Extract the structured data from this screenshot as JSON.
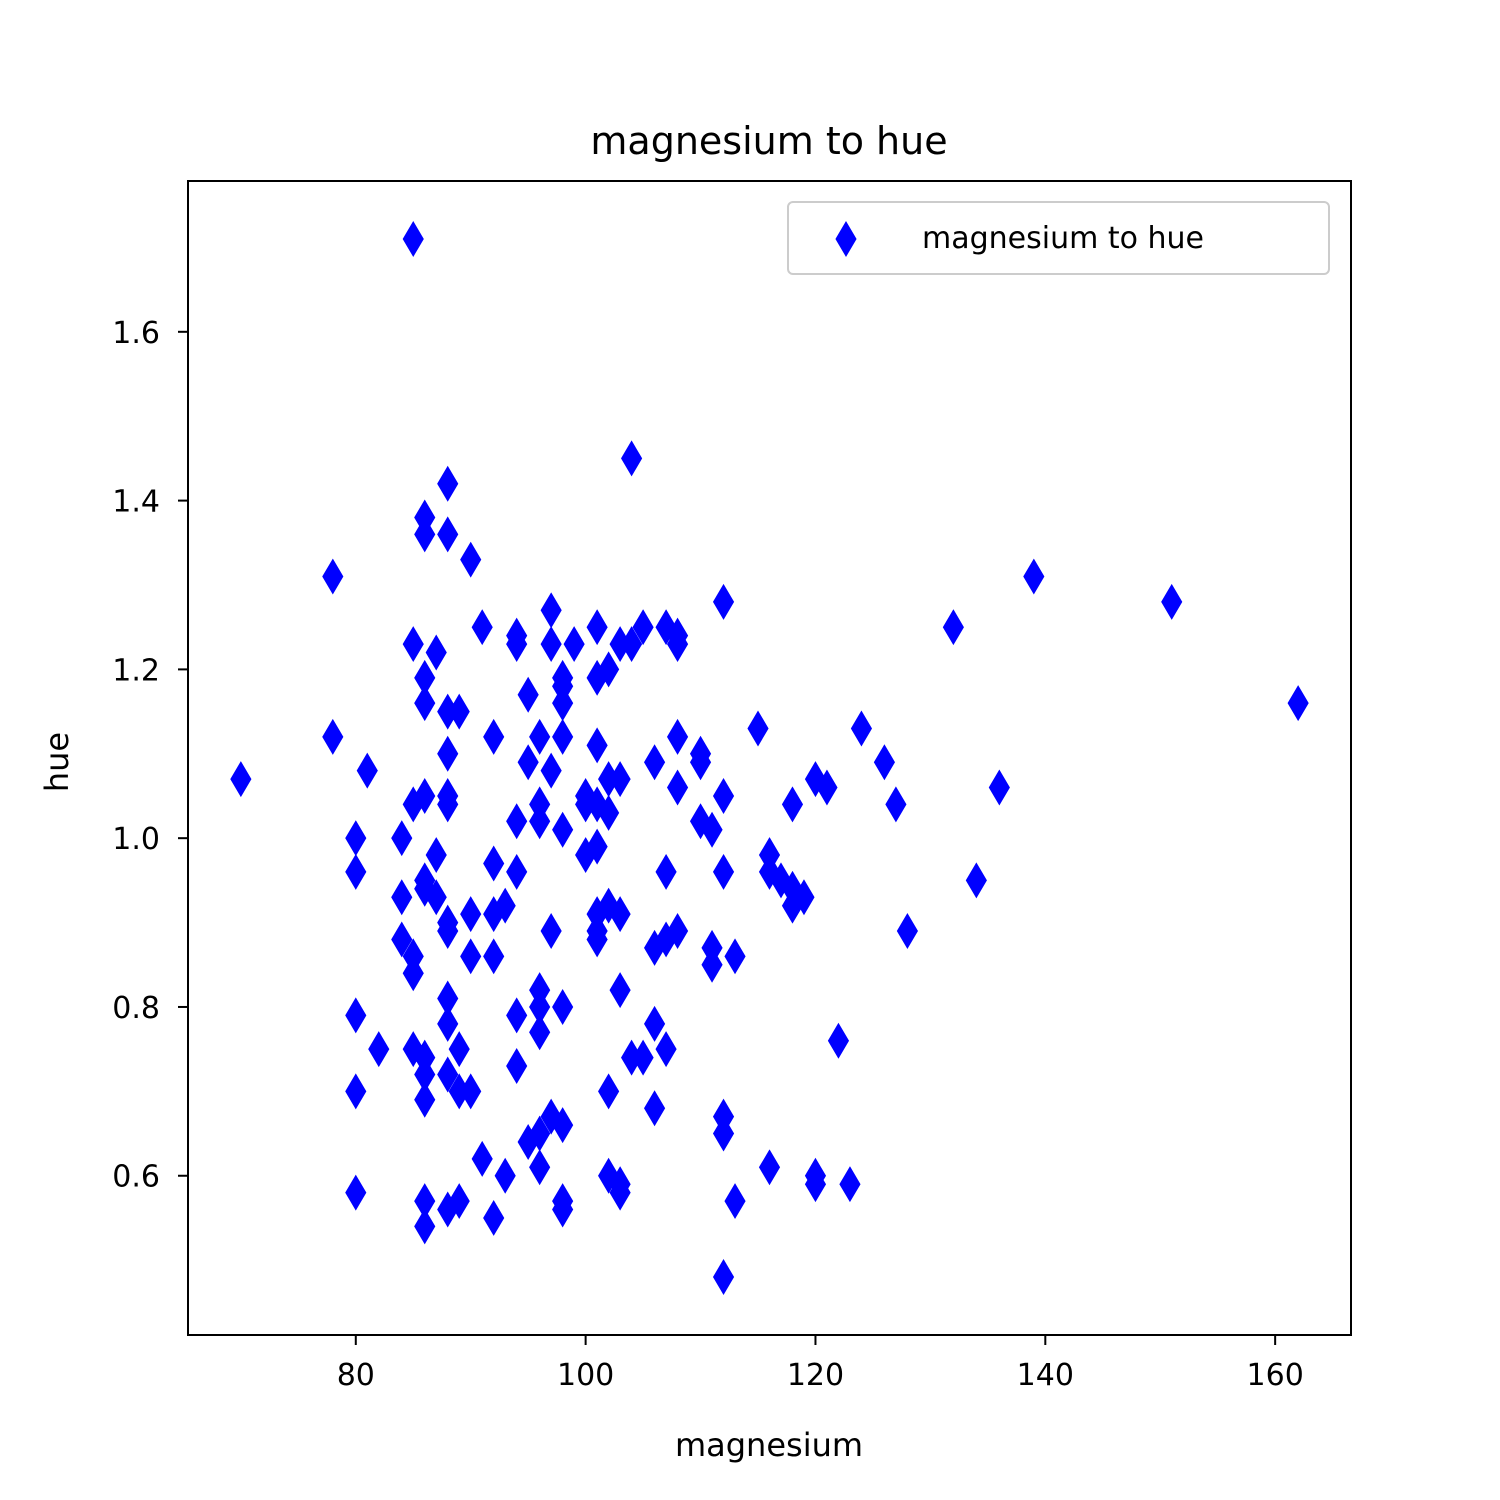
{
  "chart_data": {
    "type": "scatter",
    "title": "magnesium to hue",
    "xlabel": "magnesium",
    "ylabel": "hue",
    "xlim": [
      65.4,
      166.6
    ],
    "ylim": [
      0.4113,
      1.7787
    ],
    "xticks": [
      80,
      100,
      120,
      140,
      160
    ],
    "xtick_labels": [
      "80",
      "100",
      "120",
      "140",
      "160"
    ],
    "yticks": [
      0.6,
      0.8,
      1.0,
      1.2,
      1.4,
      1.6
    ],
    "ytick_labels": [
      "0.6",
      "0.8",
      "1.0",
      "1.2",
      "1.4",
      "1.6"
    ],
    "grid": false,
    "legend": {
      "position": "top-right",
      "entries": [
        "magnesium to hue"
      ]
    },
    "marker": "thin-diamond",
    "color": "#0000ff",
    "series": [
      {
        "name": "magnesium to hue",
        "points": [
          [
            85,
            1.71
          ],
          [
            70,
            1.07
          ],
          [
            78,
            1.31
          ],
          [
            78,
            1.12
          ],
          [
            81,
            1.08
          ],
          [
            82,
            0.75
          ],
          [
            80,
            1.0
          ],
          [
            80,
            0.96
          ],
          [
            80,
            0.79
          ],
          [
            80,
            0.7
          ],
          [
            80,
            0.58
          ],
          [
            84,
            1.0
          ],
          [
            84,
            0.93
          ],
          [
            84,
            0.88
          ],
          [
            85,
            1.23
          ],
          [
            85,
            1.04
          ],
          [
            85,
            0.86
          ],
          [
            85,
            0.84
          ],
          [
            85,
            0.75
          ],
          [
            86,
            1.38
          ],
          [
            86,
            1.36
          ],
          [
            86,
            1.19
          ],
          [
            86,
            1.16
          ],
          [
            86,
            1.05
          ],
          [
            86,
            0.95
          ],
          [
            86,
            0.94
          ],
          [
            86,
            0.74
          ],
          [
            86,
            0.72
          ],
          [
            86,
            0.69
          ],
          [
            86,
            0.57
          ],
          [
            86,
            0.54
          ],
          [
            87,
            1.22
          ],
          [
            87,
            0.98
          ],
          [
            87,
            0.93
          ],
          [
            88,
            1.42
          ],
          [
            88,
            1.36
          ],
          [
            88,
            1.15
          ],
          [
            88,
            1.1
          ],
          [
            88,
            1.05
          ],
          [
            88,
            1.04
          ],
          [
            88,
            0.9
          ],
          [
            88,
            0.89
          ],
          [
            88,
            0.81
          ],
          [
            88,
            0.78
          ],
          [
            88,
            0.72
          ],
          [
            88,
            0.56
          ],
          [
            89,
            1.15
          ],
          [
            89,
            0.75
          ],
          [
            89,
            0.7
          ],
          [
            89,
            0.57
          ],
          [
            90,
            1.33
          ],
          [
            90,
            0.91
          ],
          [
            90,
            0.86
          ],
          [
            90,
            0.7
          ],
          [
            91,
            1.25
          ],
          [
            91,
            0.62
          ],
          [
            92,
            1.12
          ],
          [
            92,
            0.97
          ],
          [
            92,
            0.91
          ],
          [
            92,
            0.86
          ],
          [
            92,
            0.55
          ],
          [
            93,
            0.92
          ],
          [
            93,
            0.6
          ],
          [
            94,
            1.24
          ],
          [
            94,
            1.23
          ],
          [
            94,
            1.02
          ],
          [
            94,
            0.96
          ],
          [
            94,
            0.79
          ],
          [
            94,
            0.73
          ],
          [
            95,
            1.17
          ],
          [
            95,
            1.09
          ],
          [
            95,
            0.64
          ],
          [
            96,
            1.12
          ],
          [
            96,
            1.04
          ],
          [
            96,
            1.02
          ],
          [
            96,
            0.82
          ],
          [
            96,
            0.8
          ],
          [
            96,
            0.77
          ],
          [
            96,
            0.65
          ],
          [
            96,
            0.61
          ],
          [
            97,
            1.27
          ],
          [
            97,
            1.23
          ],
          [
            97,
            1.08
          ],
          [
            97,
            0.89
          ],
          [
            97,
            0.67
          ],
          [
            98,
            1.19
          ],
          [
            98,
            1.18
          ],
          [
            98,
            1.16
          ],
          [
            98,
            1.12
          ],
          [
            98,
            1.01
          ],
          [
            98,
            0.8
          ],
          [
            98,
            0.66
          ],
          [
            98,
            0.57
          ],
          [
            98,
            0.56
          ],
          [
            99,
            1.23
          ],
          [
            100,
            1.05
          ],
          [
            100,
            1.04
          ],
          [
            100,
            0.98
          ],
          [
            101,
            1.25
          ],
          [
            101,
            1.19
          ],
          [
            101,
            1.11
          ],
          [
            101,
            1.04
          ],
          [
            101,
            0.99
          ],
          [
            101,
            0.91
          ],
          [
            101,
            0.89
          ],
          [
            101,
            0.88
          ],
          [
            102,
            1.2
          ],
          [
            102,
            1.07
          ],
          [
            102,
            1.03
          ],
          [
            102,
            0.92
          ],
          [
            102,
            0.7
          ],
          [
            102,
            0.6
          ],
          [
            103,
            1.23
          ],
          [
            103,
            1.07
          ],
          [
            103,
            0.91
          ],
          [
            103,
            0.82
          ],
          [
            103,
            0.59
          ],
          [
            103,
            0.58
          ],
          [
            104,
            1.45
          ],
          [
            104,
            1.23
          ],
          [
            104,
            0.74
          ],
          [
            105,
            1.25
          ],
          [
            105,
            0.74
          ],
          [
            106,
            1.09
          ],
          [
            106,
            0.87
          ],
          [
            106,
            0.78
          ],
          [
            106,
            0.68
          ],
          [
            107,
            1.25
          ],
          [
            107,
            0.96
          ],
          [
            107,
            0.88
          ],
          [
            107,
            0.75
          ],
          [
            108,
            1.24
          ],
          [
            108,
            1.23
          ],
          [
            108,
            1.12
          ],
          [
            108,
            1.06
          ],
          [
            108,
            0.89
          ],
          [
            110,
            1.1
          ],
          [
            110,
            1.09
          ],
          [
            110,
            1.02
          ],
          [
            111,
            1.01
          ],
          [
            111,
            0.87
          ],
          [
            111,
            0.85
          ],
          [
            112,
            1.28
          ],
          [
            112,
            1.05
          ],
          [
            112,
            0.96
          ],
          [
            112,
            0.67
          ],
          [
            112,
            0.65
          ],
          [
            112,
            0.48
          ],
          [
            113,
            0.86
          ],
          [
            113,
            0.57
          ],
          [
            115,
            1.13
          ],
          [
            116,
            0.98
          ],
          [
            116,
            0.96
          ],
          [
            116,
            0.61
          ],
          [
            117,
            0.95
          ],
          [
            118,
            1.04
          ],
          [
            118,
            0.94
          ],
          [
            118,
            0.92
          ],
          [
            119,
            0.93
          ],
          [
            120,
            1.07
          ],
          [
            120,
            0.6
          ],
          [
            120,
            0.59
          ],
          [
            121,
            1.06
          ],
          [
            122,
            0.76
          ],
          [
            123,
            0.59
          ],
          [
            124,
            1.13
          ],
          [
            126,
            1.09
          ],
          [
            127,
            1.04
          ],
          [
            128,
            0.89
          ],
          [
            132,
            1.25
          ],
          [
            134,
            0.95
          ],
          [
            136,
            1.06
          ],
          [
            139,
            1.31
          ],
          [
            151,
            1.28
          ],
          [
            162,
            1.16
          ]
        ]
      }
    ]
  }
}
